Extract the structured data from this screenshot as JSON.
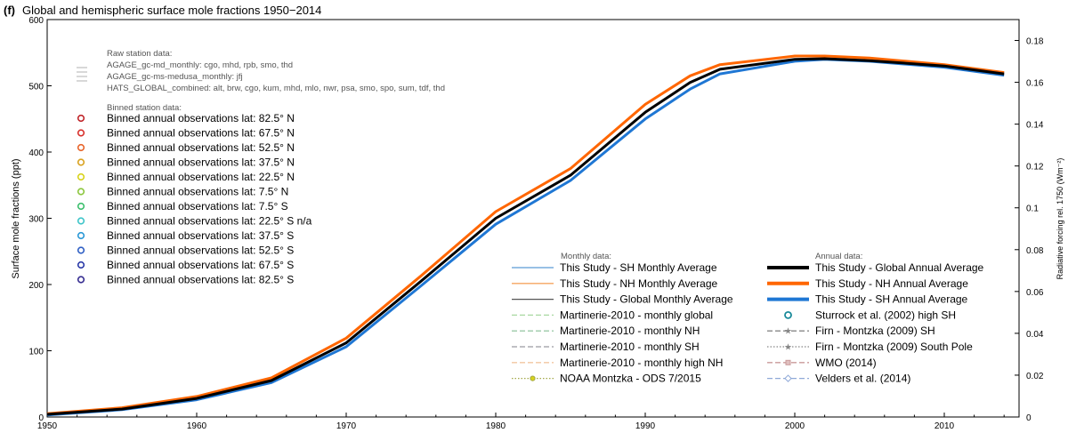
{
  "chart_data": {
    "type": "line",
    "panel_label": "(f)",
    "title": "Global and hemispheric surface mole fractions 1950−2014",
    "ylabel": "Surface mole fractions (ppt)",
    "ylabel_right": "Radiative forcing rel. 1750 (Wm⁻²)",
    "xlim": [
      1950,
      2015
    ],
    "ylim": [
      0,
      600
    ],
    "ylim_right": [
      0,
      0.19
    ],
    "x_ticks": [
      "1950",
      "1960",
      "1970",
      "1980",
      "1990",
      "2000",
      "2010"
    ],
    "y_ticks": [
      "0",
      "100",
      "200",
      "300",
      "400",
      "500",
      "600"
    ],
    "y_ticks_right": [
      "0",
      "0.02",
      "0.04",
      "0.06",
      "0.08",
      "0.1",
      "0.12",
      "0.14",
      "0.16",
      "0.18"
    ],
    "grid": false,
    "legend_raw": {
      "heading": "Raw station data:",
      "lines": [
        "AGAGE_gc-md_monthly: cgo, mhd, rpb, smo, thd",
        "AGAGE_gc-ms-medusa_monthly: jfj",
        "HATS_GLOBAL_combined: alt, brw, cgo, kum, mhd, mlo, nwr, psa, smo, spo, sum, tdf, thd"
      ]
    },
    "legend_binned": {
      "heading": "Binned station data:",
      "items": [
        {
          "label": "Binned annual observations lat: 82.5° N",
          "color": "#c0252a"
        },
        {
          "label": "Binned annual observations lat: 67.5° N",
          "color": "#d8312c"
        },
        {
          "label": "Binned annual observations lat: 52.5° N",
          "color": "#e8652b"
        },
        {
          "label": "Binned annual observations lat: 37.5° N",
          "color": "#d9a21f"
        },
        {
          "label": "Binned annual observations lat: 22.5° N",
          "color": "#d8d31b"
        },
        {
          "label": "Binned annual observations lat: 7.5° N",
          "color": "#8cc63e"
        },
        {
          "label": "Binned annual observations lat: 7.5° S",
          "color": "#3dbf6d"
        },
        {
          "label": "Binned annual observations lat: 22.5° S n/a",
          "color": "#3ec5c9"
        },
        {
          "label": "Binned annual observations lat: 37.5° S",
          "color": "#2a98d6"
        },
        {
          "label": "Binned annual observations lat: 52.5° S",
          "color": "#2f5fc4"
        },
        {
          "label": "Binned annual observations lat: 67.5° S",
          "color": "#2a3aa8"
        },
        {
          "label": "Binned annual observations lat: 82.5° S",
          "color": "#352c90"
        }
      ]
    },
    "legend_monthly": {
      "heading": "Monthly data:",
      "items": [
        {
          "label": "This Study - SH Monthly Average",
          "color": "#5b9bd5",
          "style": "solid"
        },
        {
          "label": "This Study - NH Monthly Average",
          "color": "#f4a460",
          "style": "solid"
        },
        {
          "label": "This Study - Global Monthly Average",
          "color": "#555555",
          "style": "solid"
        },
        {
          "label": "Martinerie-2010 - monthly global",
          "color": "#a8d8a0",
          "style": "dash"
        },
        {
          "label": "Martinerie-2010 - monthly NH",
          "color": "#9cc9a8",
          "style": "dash"
        },
        {
          "label": "Martinerie-2010 - monthly SH",
          "color": "#9a9aa0",
          "style": "dash"
        },
        {
          "label": "Martinerie-2010 - monthly high NH",
          "color": "#f2c6a0",
          "style": "dash"
        },
        {
          "label": "NOAA Montzka - ODS 7/2015",
          "color": "#a3a84a",
          "style": "dot"
        }
      ]
    },
    "legend_annual": {
      "heading": "Annual data:",
      "items": [
        {
          "label": "This Study - Global Annual Average",
          "color": "#000000",
          "style": "thick"
        },
        {
          "label": "This Study - NH Annual Average",
          "color": "#ff6600",
          "style": "thick"
        },
        {
          "label": "This Study - SH Annual Average",
          "color": "#1f77d4",
          "style": "thick"
        },
        {
          "label": "Sturrock et al. (2002) high SH",
          "color": "#1a8a9a",
          "style": "circle"
        },
        {
          "label": "Firn - Montzka (2009) SH",
          "color": "#888888",
          "style": "star-dash"
        },
        {
          "label": "Firn - Montzka (2009) South Pole",
          "color": "#888888",
          "style": "star-dot"
        },
        {
          "label": "WMO (2014)",
          "color": "#c99a9a",
          "style": "square-dash"
        },
        {
          "label": "Velders et al. (2014)",
          "color": "#8fa9d8",
          "style": "diamond-dash"
        }
      ]
    },
    "x": [
      1950,
      1955,
      1960,
      1965,
      1970,
      1975,
      1980,
      1985,
      1990,
      1993,
      1995,
      2000,
      2002,
      2005,
      2010,
      2014
    ],
    "series": [
      {
        "name": "This Study - Global Annual Average",
        "color": "#000000",
        "width": 3,
        "values": [
          4,
          12,
          28,
          55,
          112,
          205,
          300,
          365,
          460,
          505,
          525,
          540,
          541,
          538,
          530,
          518
        ]
      },
      {
        "name": "This Study - NH Annual Average",
        "color": "#ff6600",
        "width": 3,
        "values": [
          5,
          14,
          31,
          59,
          119,
          213,
          310,
          375,
          472,
          515,
          532,
          545,
          545,
          542,
          532,
          520
        ]
      },
      {
        "name": "This Study - SH Annual Average",
        "color": "#1f77d4",
        "width": 3,
        "values": [
          3,
          11,
          26,
          52,
          106,
          198,
          291,
          357,
          450,
          495,
          518,
          537,
          540,
          537,
          528,
          516
        ]
      }
    ]
  }
}
